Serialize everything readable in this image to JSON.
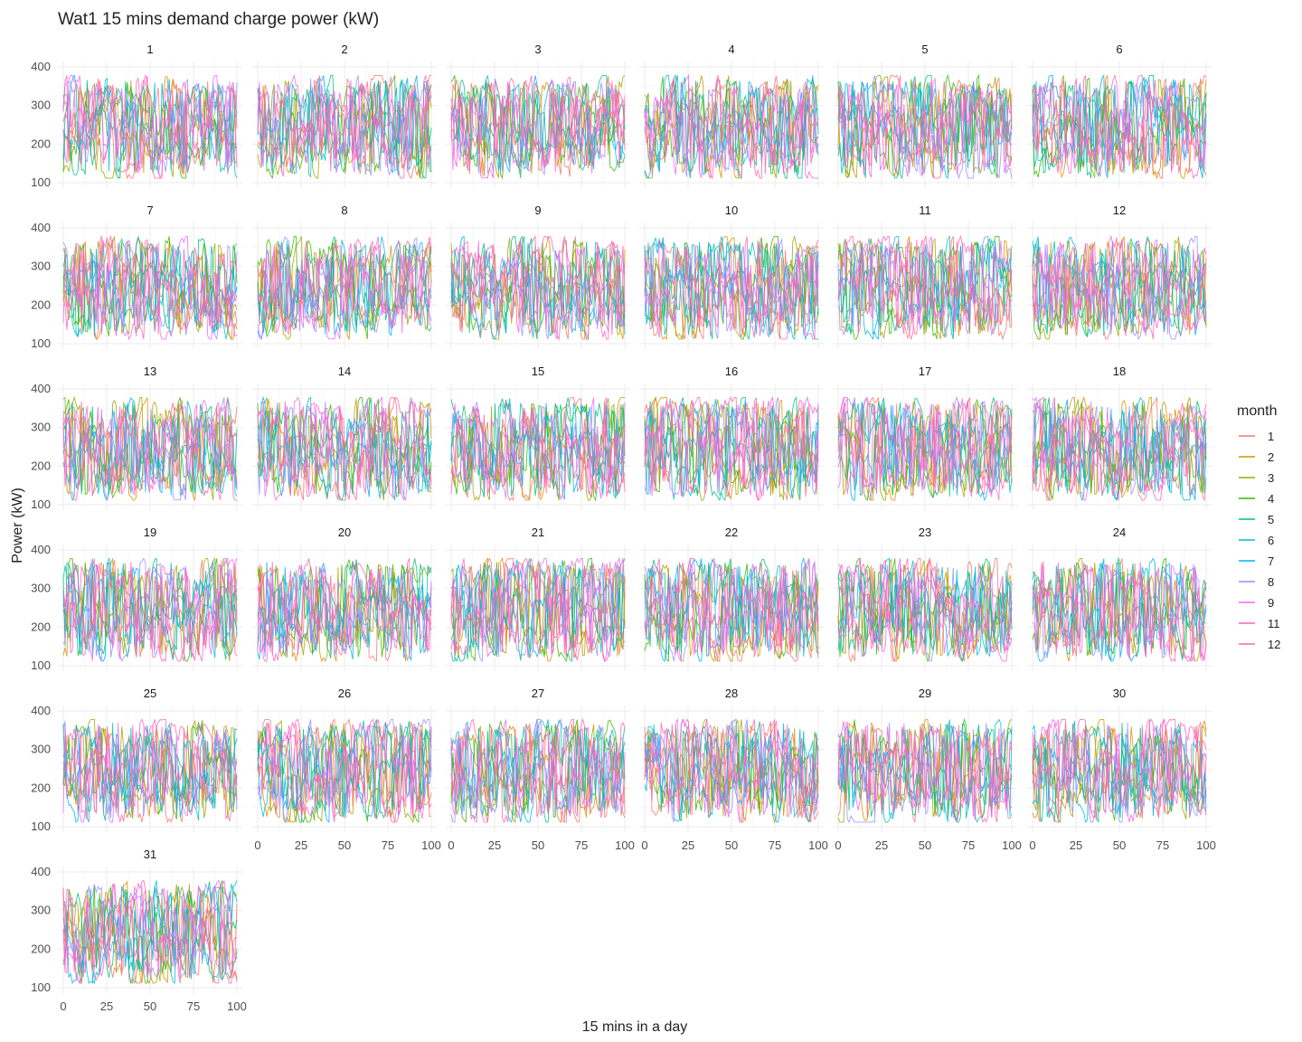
{
  "chart_data": {
    "type": "line",
    "title": "Wat1 15 mins demand charge power (kW)",
    "xlabel": "15 mins in a day",
    "ylabel": "Power (kW)",
    "xlim": [
      0,
      100
    ],
    "ylim": [
      100,
      400
    ],
    "x_ticks": [
      "0",
      "25",
      "50",
      "75",
      "100"
    ],
    "y_ticks": [
      "100",
      "200",
      "300",
      "400"
    ],
    "facet_variable": "day",
    "facets": [
      "1",
      "2",
      "3",
      "4",
      "5",
      "6",
      "7",
      "8",
      "9",
      "10",
      "11",
      "12",
      "13",
      "14",
      "15",
      "16",
      "17",
      "18",
      "19",
      "20",
      "21",
      "22",
      "23",
      "24",
      "25",
      "26",
      "27",
      "28",
      "29",
      "30",
      "31"
    ],
    "points_per_day": 96,
    "legend": {
      "title": "month",
      "position": "right",
      "entries": [
        {
          "label": "1",
          "color": "#F8766D"
        },
        {
          "label": "2",
          "color": "#D89000"
        },
        {
          "label": "3",
          "color": "#A3A500"
        },
        {
          "label": "4",
          "color": "#39B600"
        },
        {
          "label": "5",
          "color": "#00BF7D"
        },
        {
          "label": "6",
          "color": "#00BFC4"
        },
        {
          "label": "7",
          "color": "#00B0F6"
        },
        {
          "label": "8",
          "color": "#9590FF"
        },
        {
          "label": "9",
          "color": "#E76BF3"
        },
        {
          "label": "11",
          "color": "#FF62BC"
        },
        {
          "label": "12",
          "color": "#FF62BC"
        }
      ]
    },
    "series_summary": "Each panel shows one day of the month; each line is one date trace (96 fifteen-minute intervals) coloured by month. Values oscillate between about 110 and 380 kW, with dense dips toward 120 kW and a plateau near 330-360 kW."
  }
}
